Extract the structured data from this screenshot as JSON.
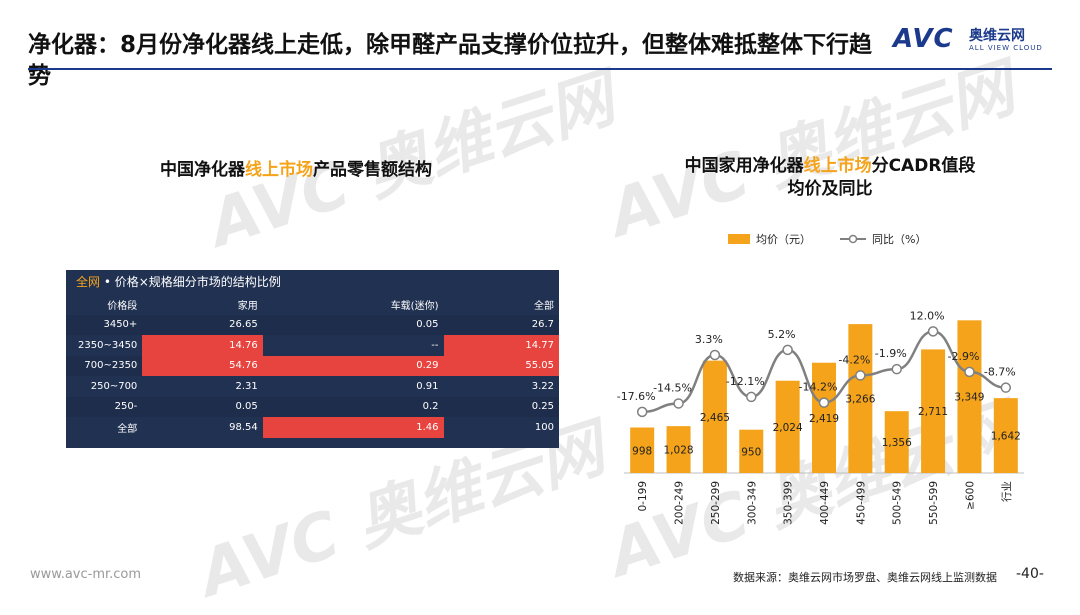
{
  "header": {
    "title": "净化器：8月份净化器线上走低，除甲醛产品支撑价位拉升，但整体难抵整体下行趋势",
    "logo_text": "AVC",
    "logo_cn": "奥维云网",
    "logo_en": "ALL VIEW CLOUD"
  },
  "watermark": {
    "text": "AVC 奥维云网"
  },
  "left_panel": {
    "title_pre": "中国净化器",
    "title_hl": "线上市场",
    "title_post": "产品零售额结构",
    "table": {
      "caption_hl": "全网",
      "caption_rest": " • 价格×规格细分市场的结构比例",
      "headers": [
        "价格段",
        "家用",
        "车载(迷你)",
        "全部"
      ],
      "rows": [
        [
          "3450+",
          "26.65",
          "0.05",
          "26.7"
        ],
        [
          "2350~3450",
          "14.76",
          "--",
          "14.77"
        ],
        [
          "700~2350",
          "54.76",
          "0.29",
          "55.05"
        ],
        [
          "250~700",
          "2.31",
          "0.91",
          "3.22"
        ],
        [
          "250-",
          "0.05",
          "0.2",
          "0.25"
        ],
        [
          "全部",
          "98.54",
          "1.46",
          "100"
        ]
      ]
    }
  },
  "right_panel": {
    "title_pre": "中国家用净化器",
    "title_hl": "线上市场",
    "title_post": "分CADR值段",
    "title_line2": "均价及同比"
  },
  "chart_data": {
    "type": "bar",
    "categories": [
      "0-199",
      "200-249",
      "250-299",
      "300-349",
      "350-399",
      "400-449",
      "450-499",
      "500-549",
      "550-599",
      "≥600",
      "行业"
    ],
    "series": [
      {
        "name": "均价（元）",
        "type": "bar",
        "values": [
          998,
          1028,
          2465,
          950,
          2024,
          2419,
          3266,
          1356,
          2711,
          3349,
          1642
        ],
        "labels": [
          "998",
          "1,028",
          "2,465",
          "950",
          "2,024",
          "2,419",
          "3,266",
          "1,356",
          "2,711",
          "3,349",
          "1,642"
        ],
        "color": "#f5a31a"
      },
      {
        "name": "同比（%）",
        "type": "line",
        "values": [
          -17.6,
          -14.5,
          3.3,
          -12.1,
          5.2,
          -14.2,
          -4.2,
          -1.9,
          12.0,
          -2.9,
          -8.7
        ],
        "labels": [
          "-17.6%",
          "-14.5%",
          "3.3%",
          "-12.1%",
          "5.2%",
          "-14.2%",
          "-4.2%",
          "-1.9%",
          "12.0%",
          "-2.9%",
          "-8.7%"
        ],
        "color": "#808080"
      }
    ],
    "legend": "top"
  },
  "footer": {
    "website": "www.avc-mr.com",
    "source": "数据来源：奥维云网市场罗盘、奥维云网线上监测数据",
    "page": "-40-"
  }
}
